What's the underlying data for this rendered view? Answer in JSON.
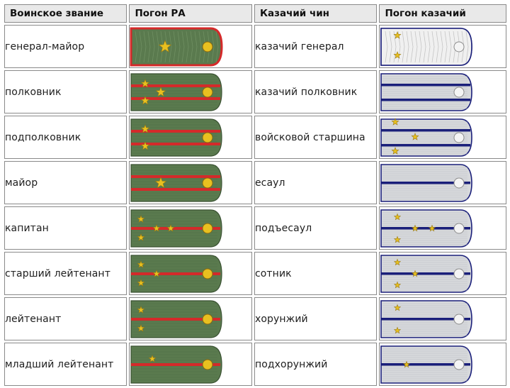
{
  "headers": {
    "rank": "Воинское звание",
    "ra": "Погон РА",
    "cossack_rank": "Казачий чин",
    "cossack_board": "Погон казачий"
  },
  "colors": {
    "ra_field": "#5a7a4e",
    "ra_stripe": "#d42a2a",
    "star": "#e8c020",
    "cossack_field": "#d7d9dc",
    "cossack_stripe": "#1a1f7a"
  },
  "rows": [
    {
      "rank": "генерал-майор",
      "cossack": "казачий генерал",
      "ra": {
        "kind": "general",
        "stars": 1
      },
      "cz": {
        "kind": "general",
        "stars": 2
      }
    },
    {
      "rank": "полковник",
      "cossack": "казачий полковник",
      "ra": {
        "kind": "senior",
        "stars": 3
      },
      "cz": {
        "kind": "senior",
        "stars": 0
      }
    },
    {
      "rank": "подполковник",
      "cossack": "войсковой старшина",
      "ra": {
        "kind": "senior",
        "stars": 2
      },
      "cz": {
        "kind": "senior",
        "stars": 3
      }
    },
    {
      "rank": "майор",
      "cossack": "есаул",
      "ra": {
        "kind": "senior",
        "stars": 1
      },
      "cz": {
        "kind": "junior",
        "stars": 0
      }
    },
    {
      "rank": "капитан",
      "cossack": "подъесаул",
      "ra": {
        "kind": "junior",
        "stars": 4
      },
      "cz": {
        "kind": "junior",
        "stars": 4
      }
    },
    {
      "rank": "старший лейтенант",
      "cossack": "сотник",
      "ra": {
        "kind": "junior",
        "stars": 3
      },
      "cz": {
        "kind": "junior",
        "stars": 3
      }
    },
    {
      "rank": "лейтенант",
      "cossack": "хорунжий",
      "ra": {
        "kind": "junior",
        "stars": 2
      },
      "cz": {
        "kind": "junior",
        "stars": 2
      }
    },
    {
      "rank": "младший лейтенант",
      "cossack": "подхорунжий",
      "ra": {
        "kind": "junior",
        "stars": 1
      },
      "cz": {
        "kind": "junior",
        "stars": 1
      }
    }
  ]
}
